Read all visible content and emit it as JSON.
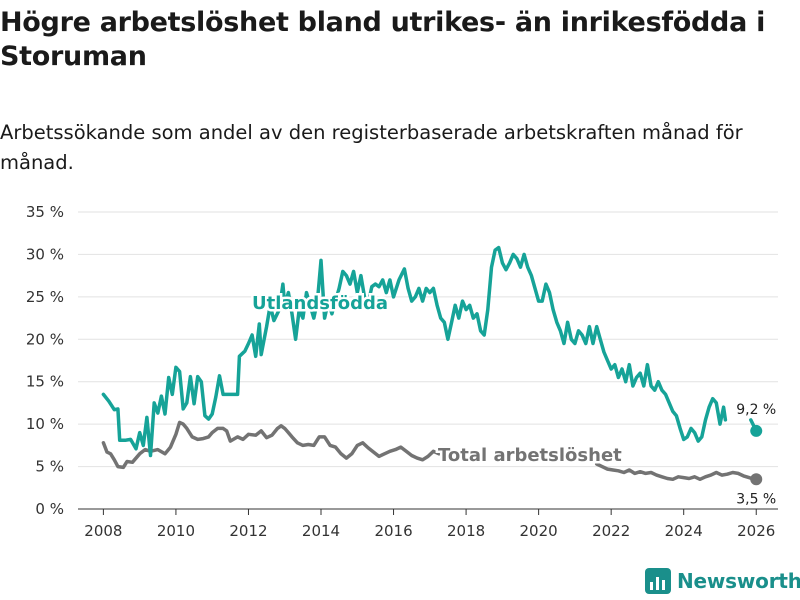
{
  "title": "Högre arbetslöshet bland utrikes- än inrikesfödda i Storuman",
  "subtitle": "Arbetssökande som andel av den registerbaserade arbetskraften månad för månad.",
  "brand": {
    "name": "Newsworthy"
  },
  "colors": {
    "foreign": "#16a398",
    "total": "#737373",
    "grid": "#e2e2e2"
  },
  "chart_data": {
    "type": "line",
    "title": "Högre arbetslöshet bland utrikes- än inrikesfödda i Storuman",
    "xlabel": "",
    "ylabel": "",
    "xlim": [
      2007.3,
      2026.6
    ],
    "ylim": [
      0,
      35
    ],
    "x_ticks": [
      2008,
      2010,
      2012,
      2014,
      2016,
      2018,
      2020,
      2022,
      2024,
      2026
    ],
    "x_tick_labels": [
      "2008",
      "2010",
      "2012",
      "2014",
      "2016",
      "2018",
      "2020",
      "2022",
      "2024",
      "2026"
    ],
    "y_ticks": [
      0,
      5,
      10,
      15,
      20,
      25,
      30,
      35
    ],
    "y_tick_labels": [
      "0 %",
      "5 %",
      "10 %",
      "15 %",
      "20 %",
      "25 %",
      "30 %",
      "35 %"
    ],
    "grid": true,
    "series": [
      {
        "name": "Utlandsfödda",
        "color": "#16a398",
        "end_label": "9,2 %",
        "end_value": 9.2,
        "end_x": 2026.0,
        "points": [
          [
            2008.0,
            13.5
          ],
          [
            2008.15,
            12.7
          ],
          [
            2008.3,
            11.7
          ],
          [
            2008.4,
            11.8
          ],
          [
            2008.45,
            8.1
          ],
          [
            2008.6,
            8.1
          ],
          [
            2008.75,
            8.2
          ],
          [
            2008.9,
            7.1
          ],
          [
            2009.0,
            9.0
          ],
          [
            2009.1,
            7.5
          ],
          [
            2009.2,
            10.8
          ],
          [
            2009.3,
            6.3
          ],
          [
            2009.4,
            12.5
          ],
          [
            2009.5,
            11.3
          ],
          [
            2009.6,
            13.3
          ],
          [
            2009.7,
            11.2
          ],
          [
            2009.8,
            15.5
          ],
          [
            2009.9,
            13.5
          ],
          [
            2010.0,
            16.7
          ],
          [
            2010.1,
            16.2
          ],
          [
            2010.2,
            11.8
          ],
          [
            2010.3,
            12.5
          ],
          [
            2010.4,
            15.6
          ],
          [
            2010.5,
            12.4
          ],
          [
            2010.6,
            15.6
          ],
          [
            2010.7,
            15.0
          ],
          [
            2010.8,
            11.0
          ],
          [
            2010.9,
            10.6
          ],
          [
            2011.0,
            11.2
          ],
          [
            2011.1,
            13.2
          ],
          [
            2011.2,
            15.7
          ],
          [
            2011.3,
            13.5
          ],
          [
            2011.5,
            13.5
          ],
          [
            2011.7,
            13.5
          ],
          [
            2011.75,
            18.0
          ],
          [
            2011.9,
            18.6
          ],
          [
            2012.0,
            19.5
          ],
          [
            2012.1,
            20.5
          ],
          [
            2012.2,
            18.0
          ],
          [
            2012.3,
            21.8
          ],
          [
            2012.35,
            18.2
          ],
          [
            2012.5,
            21.5
          ],
          [
            2012.6,
            24.0
          ],
          [
            2012.7,
            22.2
          ],
          [
            2012.85,
            23.5
          ],
          [
            2012.95,
            26.5
          ],
          [
            2013.0,
            24.0
          ],
          [
            2013.1,
            25.5
          ],
          [
            2013.2,
            23.0
          ],
          [
            2013.3,
            20.0
          ],
          [
            2013.4,
            23.5
          ],
          [
            2013.5,
            22.5
          ],
          [
            2013.6,
            25.5
          ],
          [
            2013.7,
            24.0
          ],
          [
            2013.8,
            22.5
          ],
          [
            2013.9,
            24.5
          ],
          [
            2014.0,
            29.3
          ],
          [
            2014.1,
            22.5
          ],
          [
            2014.2,
            24.5
          ],
          [
            2014.3,
            23.0
          ],
          [
            2014.5,
            26.0
          ],
          [
            2014.6,
            28.0
          ],
          [
            2014.7,
            27.5
          ],
          [
            2014.8,
            26.5
          ],
          [
            2014.9,
            28.0
          ],
          [
            2015.0,
            25.5
          ],
          [
            2015.1,
            27.5
          ],
          [
            2015.2,
            25.0
          ],
          [
            2015.3,
            24.2
          ],
          [
            2015.4,
            26.2
          ],
          [
            2015.5,
            26.5
          ],
          [
            2015.6,
            26.2
          ],
          [
            2015.7,
            27.0
          ],
          [
            2015.8,
            25.5
          ],
          [
            2015.9,
            27.0
          ],
          [
            2016.0,
            25.0
          ],
          [
            2016.15,
            27.0
          ],
          [
            2016.3,
            28.3
          ],
          [
            2016.4,
            26.0
          ],
          [
            2016.5,
            24.5
          ],
          [
            2016.6,
            25.0
          ],
          [
            2016.7,
            26.0
          ],
          [
            2016.8,
            24.5
          ],
          [
            2016.9,
            26.0
          ],
          [
            2017.0,
            25.5
          ],
          [
            2017.1,
            26.0
          ],
          [
            2017.2,
            24.0
          ],
          [
            2017.3,
            22.5
          ],
          [
            2017.4,
            22.0
          ],
          [
            2017.5,
            20.0
          ],
          [
            2017.6,
            22.0
          ],
          [
            2017.7,
            24.0
          ],
          [
            2017.8,
            22.5
          ],
          [
            2017.9,
            24.5
          ],
          [
            2018.0,
            23.5
          ],
          [
            2018.1,
            24.0
          ],
          [
            2018.2,
            22.5
          ],
          [
            2018.3,
            23.0
          ],
          [
            2018.4,
            21.0
          ],
          [
            2018.5,
            20.5
          ],
          [
            2018.6,
            23.5
          ],
          [
            2018.7,
            28.5
          ],
          [
            2018.8,
            30.5
          ],
          [
            2018.9,
            30.8
          ],
          [
            2019.0,
            29.0
          ],
          [
            2019.1,
            28.2
          ],
          [
            2019.2,
            29.0
          ],
          [
            2019.3,
            30.0
          ],
          [
            2019.4,
            29.5
          ],
          [
            2019.5,
            28.5
          ],
          [
            2019.6,
            30.0
          ],
          [
            2019.7,
            28.5
          ],
          [
            2019.8,
            27.5
          ],
          [
            2019.9,
            26.0
          ],
          [
            2020.0,
            24.5
          ],
          [
            2020.1,
            24.5
          ],
          [
            2020.2,
            26.5
          ],
          [
            2020.3,
            25.5
          ],
          [
            2020.4,
            23.5
          ],
          [
            2020.5,
            22.0
          ],
          [
            2020.6,
            21.0
          ],
          [
            2020.7,
            19.5
          ],
          [
            2020.8,
            22.0
          ],
          [
            2020.9,
            20.0
          ],
          [
            2021.0,
            19.5
          ],
          [
            2021.1,
            21.0
          ],
          [
            2021.2,
            20.5
          ],
          [
            2021.3,
            19.5
          ],
          [
            2021.4,
            21.5
          ],
          [
            2021.5,
            19.5
          ],
          [
            2021.6,
            21.5
          ],
          [
            2021.7,
            20.0
          ],
          [
            2021.8,
            18.5
          ],
          [
            2021.9,
            17.5
          ],
          [
            2022.0,
            16.5
          ],
          [
            2022.1,
            17.0
          ],
          [
            2022.2,
            15.5
          ],
          [
            2022.3,
            16.5
          ],
          [
            2022.4,
            15.0
          ],
          [
            2022.5,
            17.0
          ],
          [
            2022.6,
            14.5
          ],
          [
            2022.7,
            15.5
          ],
          [
            2022.8,
            16.0
          ],
          [
            2022.9,
            14.5
          ],
          [
            2023.0,
            17.0
          ],
          [
            2023.1,
            14.5
          ],
          [
            2023.2,
            14.0
          ],
          [
            2023.3,
            15.0
          ],
          [
            2023.4,
            14.0
          ],
          [
            2023.5,
            13.5
          ],
          [
            2023.6,
            12.5
          ],
          [
            2023.7,
            11.5
          ],
          [
            2023.8,
            11.0
          ],
          [
            2023.9,
            9.5
          ],
          [
            2024.0,
            8.2
          ],
          [
            2024.1,
            8.5
          ],
          [
            2024.2,
            9.5
          ],
          [
            2024.3,
            9.0
          ],
          [
            2024.4,
            8.0
          ],
          [
            2024.5,
            8.5
          ],
          [
            2024.6,
            10.5
          ],
          [
            2024.7,
            12.0
          ],
          [
            2024.8,
            13.0
          ],
          [
            2024.9,
            12.5
          ],
          [
            2025.0,
            10.0
          ],
          [
            2025.1,
            12.0
          ],
          [
            2025.15,
            10.5
          ]
        ]
      },
      {
        "name": "Total arbetslöshet",
        "color": "#737373",
        "end_label": "3,5 %",
        "end_value": 3.5,
        "end_x": 2026.0,
        "points": [
          [
            2008.0,
            7.8
          ],
          [
            2008.1,
            6.7
          ],
          [
            2008.2,
            6.5
          ],
          [
            2008.3,
            5.8
          ],
          [
            2008.4,
            5.0
          ],
          [
            2008.55,
            4.9
          ],
          [
            2008.65,
            5.6
          ],
          [
            2008.8,
            5.5
          ],
          [
            2009.0,
            6.5
          ],
          [
            2009.15,
            7.0
          ],
          [
            2009.3,
            6.8
          ],
          [
            2009.5,
            7.0
          ],
          [
            2009.7,
            6.5
          ],
          [
            2009.85,
            7.3
          ],
          [
            2010.0,
            8.8
          ],
          [
            2010.1,
            10.2
          ],
          [
            2010.2,
            10.0
          ],
          [
            2010.3,
            9.5
          ],
          [
            2010.45,
            8.5
          ],
          [
            2010.6,
            8.2
          ],
          [
            2010.75,
            8.3
          ],
          [
            2010.9,
            8.5
          ],
          [
            2011.0,
            9.0
          ],
          [
            2011.15,
            9.5
          ],
          [
            2011.3,
            9.5
          ],
          [
            2011.4,
            9.2
          ],
          [
            2011.5,
            8.0
          ],
          [
            2011.7,
            8.5
          ],
          [
            2011.85,
            8.2
          ],
          [
            2012.0,
            8.8
          ],
          [
            2012.2,
            8.7
          ],
          [
            2012.35,
            9.2
          ],
          [
            2012.5,
            8.4
          ],
          [
            2012.65,
            8.7
          ],
          [
            2012.8,
            9.5
          ],
          [
            2012.9,
            9.8
          ],
          [
            2013.0,
            9.5
          ],
          [
            2013.1,
            9.0
          ],
          [
            2013.2,
            8.5
          ],
          [
            2013.35,
            7.8
          ],
          [
            2013.5,
            7.5
          ],
          [
            2013.65,
            7.6
          ],
          [
            2013.8,
            7.5
          ],
          [
            2013.95,
            8.5
          ],
          [
            2014.1,
            8.5
          ],
          [
            2014.25,
            7.5
          ],
          [
            2014.4,
            7.3
          ],
          [
            2014.55,
            6.5
          ],
          [
            2014.7,
            6.0
          ],
          [
            2014.85,
            6.5
          ],
          [
            2015.0,
            7.5
          ],
          [
            2015.15,
            7.8
          ],
          [
            2015.3,
            7.2
          ],
          [
            2015.45,
            6.7
          ],
          [
            2015.6,
            6.2
          ],
          [
            2015.75,
            6.5
          ],
          [
            2015.9,
            6.8
          ],
          [
            2016.05,
            7.0
          ],
          [
            2016.2,
            7.3
          ],
          [
            2016.35,
            6.8
          ],
          [
            2016.5,
            6.3
          ],
          [
            2016.65,
            6.0
          ],
          [
            2016.8,
            5.8
          ],
          [
            2016.95,
            6.2
          ],
          [
            2017.1,
            6.8
          ],
          [
            2017.25,
            6.5
          ]
        ],
        "points_after_label": [
          [
            2021.6,
            5.3
          ],
          [
            2021.75,
            5.0
          ],
          [
            2021.9,
            4.7
          ],
          [
            2022.05,
            4.6
          ],
          [
            2022.2,
            4.5
          ],
          [
            2022.35,
            4.3
          ],
          [
            2022.5,
            4.6
          ],
          [
            2022.65,
            4.2
          ],
          [
            2022.8,
            4.4
          ],
          [
            2022.95,
            4.2
          ],
          [
            2023.1,
            4.3
          ],
          [
            2023.25,
            4.0
          ],
          [
            2023.4,
            3.8
          ],
          [
            2023.55,
            3.6
          ],
          [
            2023.7,
            3.5
          ],
          [
            2023.85,
            3.8
          ],
          [
            2024.0,
            3.7
          ],
          [
            2024.15,
            3.6
          ],
          [
            2024.3,
            3.8
          ],
          [
            2024.45,
            3.5
          ],
          [
            2024.6,
            3.8
          ],
          [
            2024.75,
            4.0
          ],
          [
            2024.9,
            4.3
          ],
          [
            2025.05,
            4.0
          ],
          [
            2025.2,
            4.1
          ],
          [
            2025.35,
            4.3
          ],
          [
            2025.5,
            4.2
          ],
          [
            2025.65,
            3.9
          ],
          [
            2025.8,
            3.7
          ],
          [
            2025.95,
            3.5
          ]
        ]
      }
    ]
  }
}
